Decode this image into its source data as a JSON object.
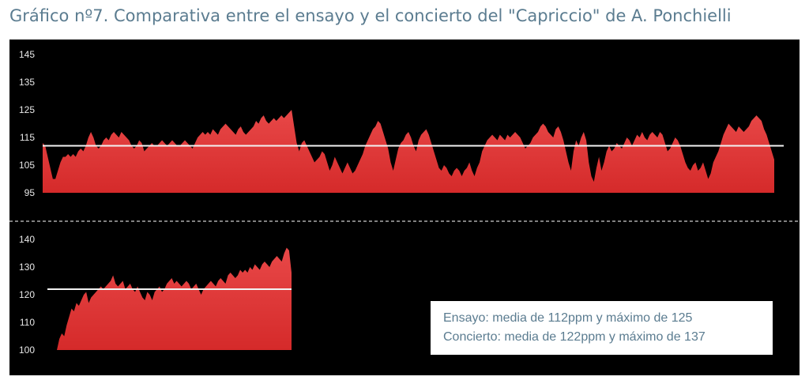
{
  "title": "Gráfico nº7. Comparativa entre el ensayo y el concierto del \"Capriccio\" de A. Ponchielli",
  "colors": {
    "fill_top": "#e84848",
    "fill_bottom": "#d52a2a",
    "background": "#000000",
    "mean_line": "#f2f2f2"
  },
  "legend": {
    "ensayo": "Ensayo: media de 112ppm y máximo de 125",
    "concierto": "Concierto: media de 122ppm y máximo de 137"
  },
  "chart_data": [
    {
      "type": "area",
      "ylim": [
        95,
        145
      ],
      "yticks": [
        95,
        105,
        115,
        125,
        135,
        145
      ],
      "mean": 112,
      "max": 125,
      "values": [
        113,
        112,
        108,
        104,
        100,
        100,
        103,
        106,
        108,
        108,
        109,
        108,
        109,
        108,
        110,
        111,
        110,
        112,
        115,
        117,
        115,
        112,
        111,
        112,
        114,
        115,
        114,
        116,
        117,
        116,
        115,
        117,
        116,
        115,
        114,
        112,
        111,
        112,
        114,
        113,
        110,
        111,
        112,
        113,
        112,
        112,
        113,
        114,
        113,
        112,
        113,
        114,
        113,
        112,
        112,
        113,
        114,
        113,
        112,
        111,
        113,
        115,
        116,
        117,
        116,
        117,
        116,
        118,
        117,
        116,
        118,
        119,
        120,
        119,
        118,
        117,
        116,
        118,
        119,
        117,
        116,
        117,
        118,
        119,
        121,
        120,
        122,
        123,
        121,
        120,
        121,
        122,
        121,
        122,
        123,
        122,
        123,
        124,
        125,
        119,
        113,
        110,
        113,
        114,
        112,
        110,
        108,
        106,
        107,
        108,
        110,
        109,
        106,
        103,
        105,
        108,
        106,
        104,
        102,
        104,
        106,
        104,
        102,
        103,
        105,
        107,
        109,
        112,
        114,
        116,
        118,
        119,
        121,
        120,
        117,
        114,
        111,
        106,
        103,
        107,
        111,
        113,
        114,
        116,
        117,
        115,
        112,
        110,
        114,
        116,
        117,
        118,
        116,
        113,
        110,
        107,
        104,
        103,
        105,
        104,
        102,
        101,
        103,
        104,
        103,
        101,
        103,
        104,
        106,
        103,
        101,
        104,
        106,
        110,
        112,
        114,
        115,
        116,
        115,
        114,
        116,
        115,
        114,
        116,
        115,
        116,
        117,
        116,
        115,
        113,
        111,
        112,
        113,
        115,
        116,
        117,
        119,
        120,
        119,
        117,
        116,
        115,
        118,
        119,
        117,
        114,
        110,
        106,
        103,
        110,
        114,
        112,
        115,
        117,
        114,
        106,
        101,
        99,
        104,
        108,
        103,
        106,
        110,
        112,
        110,
        111,
        113,
        112,
        111,
        113,
        115,
        114,
        112,
        114,
        116,
        115,
        117,
        115,
        114,
        116,
        117,
        116,
        115,
        117,
        116,
        113,
        110,
        111,
        113,
        115,
        114,
        112,
        109,
        106,
        104,
        103,
        105,
        106,
        103,
        104,
        106,
        103,
        100,
        102,
        106,
        108,
        110,
        113,
        116,
        118,
        120,
        119,
        118,
        117,
        119,
        118,
        117,
        118,
        119,
        121,
        122,
        123,
        122,
        121,
        118,
        116,
        113,
        110,
        107
      ],
      "ylabel": "",
      "xlabel": ""
    },
    {
      "type": "area",
      "ylim": [
        100,
        140
      ],
      "yticks": [
        100,
        110,
        120,
        130,
        140
      ],
      "mean": 122,
      "max": 137,
      "values": [
        100,
        104,
        106,
        105,
        109,
        112,
        115,
        114,
        117,
        116,
        118,
        120,
        121,
        117,
        119,
        120,
        121,
        122,
        123,
        122,
        123,
        124,
        125,
        127,
        124,
        123,
        124,
        125,
        122,
        123,
        124,
        122,
        121,
        123,
        121,
        119,
        118,
        121,
        120,
        118,
        121,
        122,
        123,
        121,
        122,
        124,
        125,
        126,
        124,
        125,
        124,
        123,
        124,
        125,
        124,
        122,
        123,
        124,
        122,
        120,
        122,
        123,
        124,
        125,
        124,
        123,
        125,
        126,
        125,
        124,
        127,
        128,
        127,
        126,
        127,
        129,
        128,
        129,
        128,
        130,
        129,
        131,
        130,
        129,
        131,
        132,
        131,
        130,
        132,
        133,
        134,
        133,
        132,
        135,
        137,
        136,
        128
      ]
    }
  ]
}
